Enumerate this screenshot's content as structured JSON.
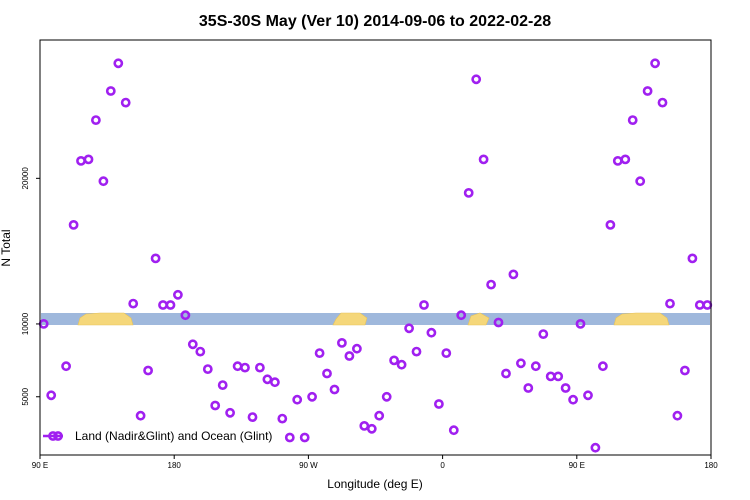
{
  "chart_data": {
    "type": "scatter",
    "title": "35S-30S May (Ver 10)   2014-09-06 to 2022-02-28",
    "xlabel": "Longitude (deg E)",
    "ylabel": "N Total",
    "xlim": [
      90,
      540
    ],
    "ylim": [
      1000,
      29500
    ],
    "x_ticks": [
      {
        "value": 90,
        "label": "90 E"
      },
      {
        "value": 180,
        "label": "180"
      },
      {
        "value": 270,
        "label": "90 W"
      },
      {
        "value": 360,
        "label": "0"
      },
      {
        "value": 450,
        "label": "90 E"
      },
      {
        "value": 540,
        "label": "180"
      }
    ],
    "y_ticks": [
      {
        "value": 5000,
        "label": "5000"
      },
      {
        "value": 10000,
        "label": "10000"
      },
      {
        "value": 20000,
        "label": "20000"
      }
    ],
    "grid": false,
    "legend_position": "bottom-left",
    "colors": {
      "series": "#a020f0",
      "ocean_band": "#9fb8dc",
      "land_band": "#f5d77a",
      "land_dark": "#e8c45a"
    },
    "series": [
      {
        "name": "Land (Nadir&Glint) and Ocean (Glint)",
        "points": [
          [
            92.5,
            10000
          ],
          [
            97.5,
            5100
          ],
          [
            107.5,
            7100
          ],
          [
            112.5,
            16800
          ],
          [
            117.5,
            21200
          ],
          [
            122.5,
            21300
          ],
          [
            127.5,
            24000
          ],
          [
            132.5,
            19800
          ],
          [
            137.5,
            26000
          ],
          [
            142.5,
            27900
          ],
          [
            147.5,
            25200
          ],
          [
            152.5,
            11400
          ],
          [
            157.5,
            3700
          ],
          [
            162.5,
            6800
          ],
          [
            167.5,
            14500
          ],
          [
            172.5,
            11300
          ],
          [
            177.5,
            11300
          ],
          [
            182.5,
            12000
          ],
          [
            187.5,
            10600
          ],
          [
            192.5,
            8600
          ],
          [
            197.5,
            8100
          ],
          [
            202.5,
            6900
          ],
          [
            207.5,
            4400
          ],
          [
            212.5,
            5800
          ],
          [
            217.5,
            3900
          ],
          [
            222.5,
            7100
          ],
          [
            227.5,
            7000
          ],
          [
            232.5,
            3600
          ],
          [
            237.5,
            7000
          ],
          [
            242.5,
            6200
          ],
          [
            247.5,
            6000
          ],
          [
            252.5,
            3500
          ],
          [
            257.5,
            2200
          ],
          [
            262.5,
            4800
          ],
          [
            267.5,
            2200
          ],
          [
            272.5,
            5000
          ],
          [
            277.5,
            8000
          ],
          [
            282.5,
            6600
          ],
          [
            287.5,
            5500
          ],
          [
            292.5,
            8700
          ],
          [
            297.5,
            7800
          ],
          [
            302.5,
            8300
          ],
          [
            307.5,
            3000
          ],
          [
            312.5,
            2800
          ],
          [
            317.5,
            3700
          ],
          [
            322.5,
            5000
          ],
          [
            327.5,
            7500
          ],
          [
            332.5,
            7200
          ],
          [
            337.5,
            9700
          ],
          [
            342.5,
            8100
          ],
          [
            347.5,
            11300
          ],
          [
            352.5,
            9400
          ],
          [
            357.5,
            4500
          ],
          [
            362.5,
            8000
          ],
          [
            367.5,
            2700
          ],
          [
            372.5,
            10600
          ],
          [
            377.5,
            19000
          ],
          [
            382.5,
            26800
          ],
          [
            387.5,
            21300
          ],
          [
            392.5,
            12700
          ],
          [
            397.5,
            10100
          ],
          [
            402.5,
            6600
          ],
          [
            407.5,
            13400
          ],
          [
            412.5,
            7300
          ],
          [
            417.5,
            5600
          ],
          [
            422.5,
            7100
          ],
          [
            427.5,
            9300
          ],
          [
            432.5,
            6400
          ],
          [
            437.5,
            6400
          ],
          [
            442.5,
            5600
          ],
          [
            447.5,
            4800
          ],
          [
            452.5,
            10000
          ],
          [
            457.5,
            5100
          ],
          [
            462.5,
            1500
          ],
          [
            467.5,
            7100
          ],
          [
            472.5,
            16800
          ],
          [
            477.5,
            21200
          ],
          [
            482.5,
            21300
          ],
          [
            487.5,
            24000
          ],
          [
            492.5,
            19800
          ],
          [
            497.5,
            26000
          ],
          [
            502.5,
            27900
          ],
          [
            507.5,
            25200
          ],
          [
            512.5,
            11400
          ],
          [
            517.5,
            3700
          ],
          [
            522.5,
            6800
          ],
          [
            527.5,
            14500
          ],
          [
            532.5,
            11300
          ],
          [
            537.5,
            11300
          ]
        ]
      }
    ]
  }
}
